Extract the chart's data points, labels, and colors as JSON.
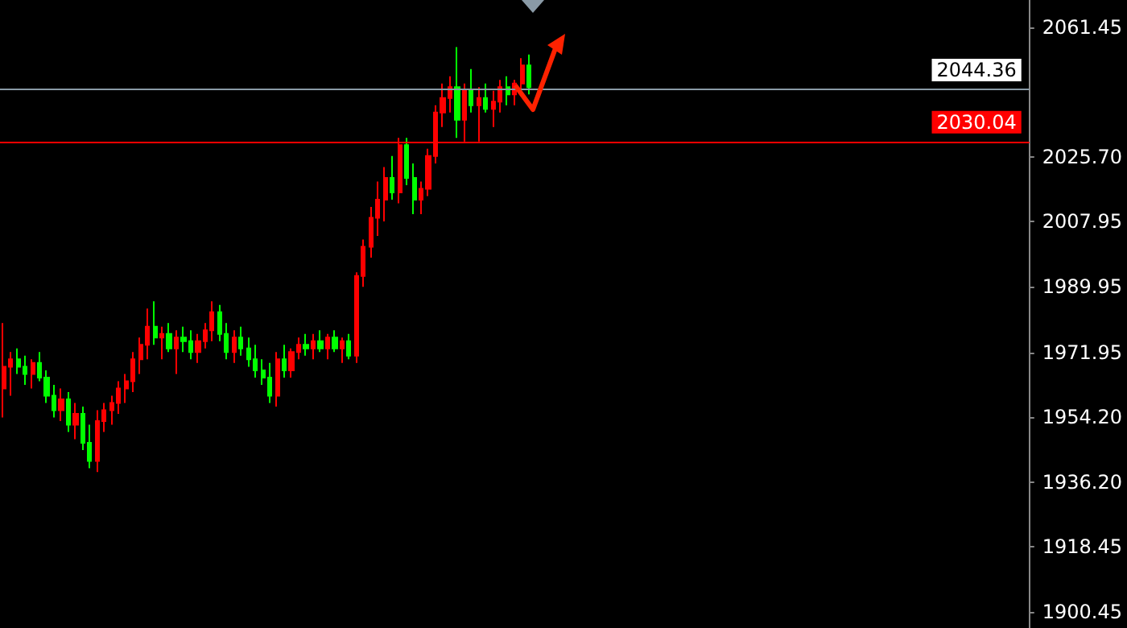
{
  "chart_data": {
    "type": "candlestick",
    "categories": [
      null,
      null,
      null,
      null,
      null,
      null,
      null,
      null,
      null,
      null,
      null,
      null,
      null,
      null,
      null,
      null,
      null,
      null,
      null,
      null,
      null,
      null,
      null,
      null,
      null,
      null,
      null,
      null,
      null,
      null,
      null,
      null,
      null,
      null,
      null,
      null,
      null,
      null,
      null,
      null,
      null,
      null,
      null,
      null,
      null,
      null,
      null,
      null,
      null,
      null,
      null,
      null,
      null,
      null,
      null,
      null,
      null,
      null,
      null,
      null,
      null,
      null,
      null,
      null,
      null,
      null,
      null,
      null,
      null,
      null,
      null,
      null,
      null,
      null,
      null,
      null,
      null,
      null,
      null,
      null,
      null,
      null,
      null,
      null,
      null,
      null,
      null,
      null,
      null,
      null,
      null,
      null,
      null,
      null,
      null,
      null,
      null,
      null,
      null,
      null,
      null,
      null,
      null,
      null,
      null,
      null,
      null,
      null,
      null,
      null,
      null,
      null,
      null,
      null,
      null,
      null,
      null,
      null,
      null,
      null,
      null,
      null,
      null,
      null,
      null,
      null,
      null,
      null,
      null,
      null,
      null,
      null,
      null,
      null,
      null,
      null,
      null,
      null,
      null,
      null,
      null,
      null,
      null
    ],
    "ohlc": [
      [
        1962,
        1980,
        1954,
        1968
      ],
      [
        1968,
        1972,
        1960,
        1970
      ],
      [
        1970,
        1973,
        1966,
        1968
      ],
      [
        1968,
        1971,
        1963,
        1966
      ],
      [
        1966,
        1970,
        1962,
        1969
      ],
      [
        1969,
        1972,
        1964,
        1965
      ],
      [
        1965,
        1967,
        1958,
        1960
      ],
      [
        1960,
        1963,
        1954,
        1956
      ],
      [
        1956,
        1962,
        1953,
        1959
      ],
      [
        1959,
        1961,
        1950,
        1952
      ],
      [
        1952,
        1958,
        1948,
        1955
      ],
      [
        1955,
        1957,
        1945,
        1947
      ],
      [
        1947,
        1952,
        1940,
        1942
      ],
      [
        1942,
        1956,
        1939,
        1953
      ],
      [
        1953,
        1958,
        1950,
        1956
      ],
      [
        1956,
        1960,
        1952,
        1958
      ],
      [
        1958,
        1964,
        1955,
        1962
      ],
      [
        1962,
        1966,
        1958,
        1964
      ],
      [
        1964,
        1972,
        1961,
        1970
      ],
      [
        1970,
        1976,
        1966,
        1974
      ],
      [
        1974,
        1984,
        1970,
        1979
      ],
      [
        1979,
        1986,
        1974,
        1976
      ],
      [
        1976,
        1979,
        1970,
        1977
      ],
      [
        1977,
        1980,
        1972,
        1973
      ],
      [
        1973,
        1978,
        1966,
        1976
      ],
      [
        1976,
        1979,
        1972,
        1975
      ],
      [
        1975,
        1978,
        1970,
        1972
      ],
      [
        1972,
        1977,
        1969,
        1975
      ],
      [
        1975,
        1980,
        1973,
        1978
      ],
      [
        1978,
        1986,
        1975,
        1983
      ],
      [
        1983,
        1985,
        1975,
        1977
      ],
      [
        1977,
        1980,
        1970,
        1972
      ],
      [
        1972,
        1978,
        1969,
        1976
      ],
      [
        1976,
        1979,
        1971,
        1973
      ],
      [
        1973,
        1976,
        1968,
        1970
      ],
      [
        1970,
        1974,
        1965,
        1967
      ],
      [
        1967,
        1970,
        1963,
        1965
      ],
      [
        1965,
        1969,
        1958,
        1960
      ],
      [
        1960,
        1972,
        1957,
        1970
      ],
      [
        1970,
        1974,
        1965,
        1967
      ],
      [
        1967,
        1973,
        1965,
        1972
      ],
      [
        1972,
        1976,
        1970,
        1974
      ],
      [
        1974,
        1977,
        1971,
        1973
      ],
      [
        1973,
        1977,
        1970,
        1975
      ],
      [
        1975,
        1978,
        1972,
        1973
      ],
      [
        1973,
        1977,
        1970,
        1976
      ],
      [
        1976,
        1978,
        1972,
        1973
      ],
      [
        1973,
        1976,
        1969,
        1975
      ],
      [
        1975,
        1977,
        1970,
        1971
      ],
      [
        1971,
        1994,
        1969,
        1993
      ],
      [
        1993,
        2003,
        1990,
        2001
      ],
      [
        2001,
        2012,
        1998,
        2009
      ],
      [
        2009,
        2019,
        2004,
        2014
      ],
      [
        2014,
        2023,
        2008,
        2020
      ],
      [
        2020,
        2026,
        2014,
        2016
      ],
      [
        2016,
        2031,
        2013,
        2029
      ],
      [
        2029,
        2031,
        2018,
        2020
      ],
      [
        2020,
        2024,
        2010,
        2014
      ],
      [
        2014,
        2019,
        2010,
        2017
      ],
      [
        2017,
        2028,
        2015,
        2026
      ],
      [
        2026,
        2040,
        2024,
        2038
      ],
      [
        2038,
        2046,
        2034,
        2042
      ],
      [
        2042,
        2048,
        2038,
        2045
      ],
      [
        2045,
        2056,
        2031,
        2036
      ],
      [
        2036,
        2046,
        2030,
        2044
      ],
      [
        2044,
        2050,
        2038,
        2040
      ],
      [
        2040,
        2045,
        2030,
        2042
      ],
      [
        2042,
        2046,
        2038,
        2039
      ],
      [
        2039,
        2044,
        2034,
        2041
      ],
      [
        2041,
        2047,
        2038,
        2045
      ],
      [
        2045,
        2048,
        2040,
        2043
      ],
      [
        2043,
        2047,
        2040,
        2046
      ],
      [
        2046,
        2053,
        2043,
        2051
      ],
      [
        2051,
        2054,
        2043,
        2045
      ],
      null,
      null,
      null,
      null,
      null,
      null,
      null,
      null,
      null,
      null,
      null,
      null,
      null,
      null,
      null,
      null,
      null,
      null,
      null,
      null,
      null,
      null,
      null,
      null,
      null,
      null,
      null,
      null,
      null,
      null,
      null,
      null,
      null,
      null,
      null,
      null,
      null,
      null,
      null,
      null,
      null,
      null,
      null,
      null,
      null,
      null,
      null,
      null,
      null,
      null,
      null,
      null,
      null,
      null,
      null,
      null,
      null,
      null,
      null,
      null,
      null,
      null,
      null,
      null,
      null,
      null,
      null,
      null,
      null
    ],
    "colors": [
      "#ff0000",
      "#ff0000",
      "#00ff00",
      "#00ff00",
      "#ff0000",
      "#00ff00",
      "#00ff00",
      "#00ff00",
      "#ff0000",
      "#00ff00",
      "#ff0000",
      "#00ff00",
      "#00ff00",
      "#ff0000",
      "#ff0000",
      "#ff0000",
      "#ff0000",
      "#ff0000",
      "#ff0000",
      "#ff0000",
      "#ff0000",
      "#00ff00",
      "#ff0000",
      "#00ff00",
      "#ff0000",
      "#00ff00",
      "#00ff00",
      "#ff0000",
      "#ff0000",
      "#ff0000",
      "#00ff00",
      "#00ff00",
      "#ff0000",
      "#00ff00",
      "#00ff00",
      "#00ff00",
      "#00ff00",
      "#00ff00",
      "#ff0000",
      "#00ff00",
      "#ff0000",
      "#ff0000",
      "#00ff00",
      "#ff0000",
      "#00ff00",
      "#ff0000",
      "#00ff00",
      "#ff0000",
      "#00ff00",
      "#ff0000",
      "#ff0000",
      "#ff0000",
      "#ff0000",
      "#ff0000",
      "#00ff00",
      "#ff0000",
      "#00ff00",
      "#00ff00",
      "#ff0000",
      "#ff0000",
      "#ff0000",
      "#ff0000",
      "#ff0000",
      "#00ff00",
      "#ff0000",
      "#00ff00",
      "#ff0000",
      "#00ff00",
      "#ff0000",
      "#ff0000",
      "#00ff00",
      "#ff0000",
      "#ff0000",
      "#00ff00",
      null,
      null,
      null,
      null,
      null,
      null,
      null,
      null,
      null,
      null,
      null,
      null,
      null,
      null,
      null,
      null,
      null,
      null,
      null,
      null,
      null,
      null,
      null,
      null,
      null,
      null,
      null,
      null,
      null,
      null,
      null,
      null,
      null,
      null,
      null,
      null,
      null,
      null,
      null,
      null,
      null,
      null,
      null,
      null,
      null,
      null,
      null,
      null,
      null,
      null,
      null,
      null,
      null,
      null,
      null,
      null,
      null,
      null,
      null,
      null,
      null,
      null,
      null,
      null,
      null,
      null,
      null,
      null,
      null
    ],
    "ylim": [
      1896,
      2069
    ],
    "yticks": [
      1900.45,
      1918.45,
      {
        "value": 1936.2,
        "label": "1936.20"
      },
      {
        "value": 1954.2,
        "label": "1954.20"
      },
      1971.95,
      1989.95,
      2007.95,
      {
        "value": 2025.7,
        "label": "2025.70"
      },
      2061.45
    ],
    "ref_lines": [
      {
        "axis": "y",
        "value": 2044.36,
        "label": "2044.36",
        "color": "#8a9aa6"
      },
      {
        "axis": "y",
        "value": 2030.04,
        "label": "2030.04",
        "color": "#ff0000"
      }
    ],
    "grid": false
  }
}
